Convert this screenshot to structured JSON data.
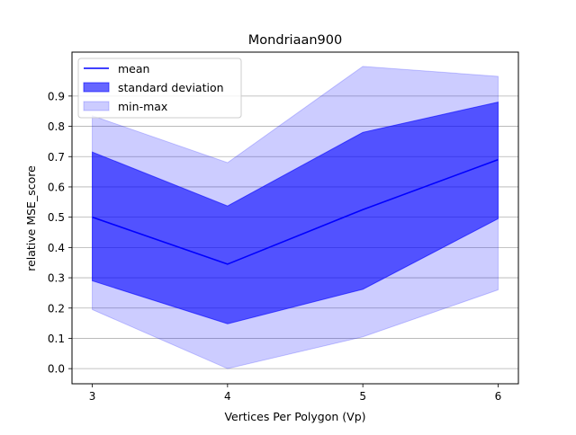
{
  "chart_data": {
    "type": "line",
    "title": "Mondriaan900",
    "xlabel": "Vertices Per Polygon (Vp)",
    "ylabel": "relative MSE_score",
    "x": [
      3,
      4,
      5,
      6
    ],
    "xlim": [
      2.85,
      6.15
    ],
    "ylim": [
      -0.05,
      1.045
    ],
    "x_ticks": [
      "3",
      "4",
      "5",
      "6"
    ],
    "y_ticks": [
      "0.0",
      "0.1",
      "0.2",
      "0.3",
      "0.4",
      "0.5",
      "0.6",
      "0.7",
      "0.8",
      "0.9"
    ],
    "grid": "horizontal",
    "legend_position": "top-left",
    "series": [
      {
        "name": "mean",
        "kind": "line",
        "color": "#0000ff",
        "values": [
          0.5,
          0.345,
          0.525,
          0.69
        ]
      },
      {
        "name": "standard deviation",
        "kind": "band",
        "color": "#0000ff",
        "opacity": 0.6,
        "lower": [
          0.29,
          0.148,
          0.262,
          0.495
        ],
        "upper": [
          0.715,
          0.537,
          0.78,
          0.88
        ]
      },
      {
        "name": "min-max",
        "kind": "band",
        "color": "#0000ff",
        "opacity": 0.2,
        "lower": [
          0.195,
          0.0,
          0.105,
          0.26
        ],
        "upper": [
          0.835,
          0.68,
          0.998,
          0.965
        ]
      }
    ]
  }
}
